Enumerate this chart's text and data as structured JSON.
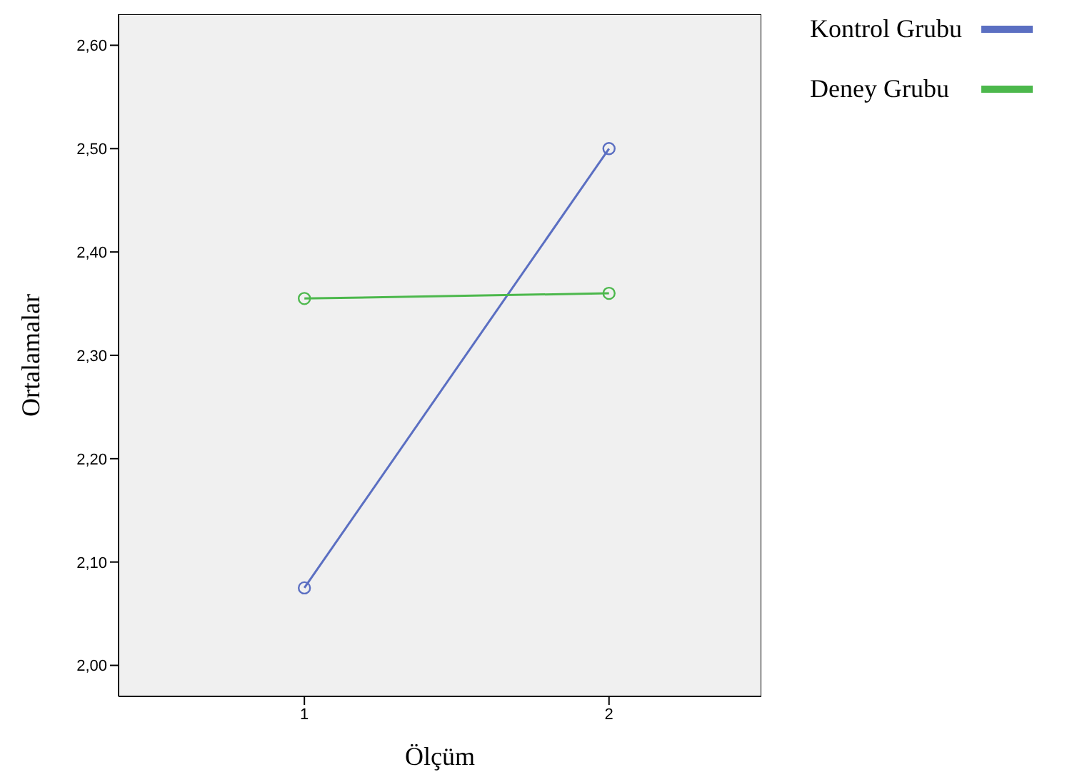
{
  "chart_data": {
    "type": "line",
    "xlabel": "Ölçüm",
    "ylabel": "Ortalamalar",
    "x": [
      1,
      2
    ],
    "series": [
      {
        "name": "Kontrol Grubu",
        "color": "#5b6fc2",
        "values": [
          2.075,
          2.5
        ]
      },
      {
        "name": "Deney Grubu",
        "color": "#4cb84c",
        "values": [
          2.355,
          2.36
        ]
      }
    ],
    "xlim": [
      0.39,
      2.5
    ],
    "xticks": [
      1,
      2
    ],
    "ylim": [
      1.97,
      2.63
    ],
    "yticks": [
      {
        "value": 2.0,
        "label": "2,00"
      },
      {
        "value": 2.1,
        "label": "2,10"
      },
      {
        "value": 2.2,
        "label": "2,20"
      },
      {
        "value": 2.3,
        "label": "2,30"
      },
      {
        "value": 2.4,
        "label": "2,40"
      },
      {
        "value": 2.5,
        "label": "2,50"
      },
      {
        "value": 2.6,
        "label": "2,60"
      }
    ],
    "marker": "circle",
    "legend": "right",
    "grid": false
  }
}
